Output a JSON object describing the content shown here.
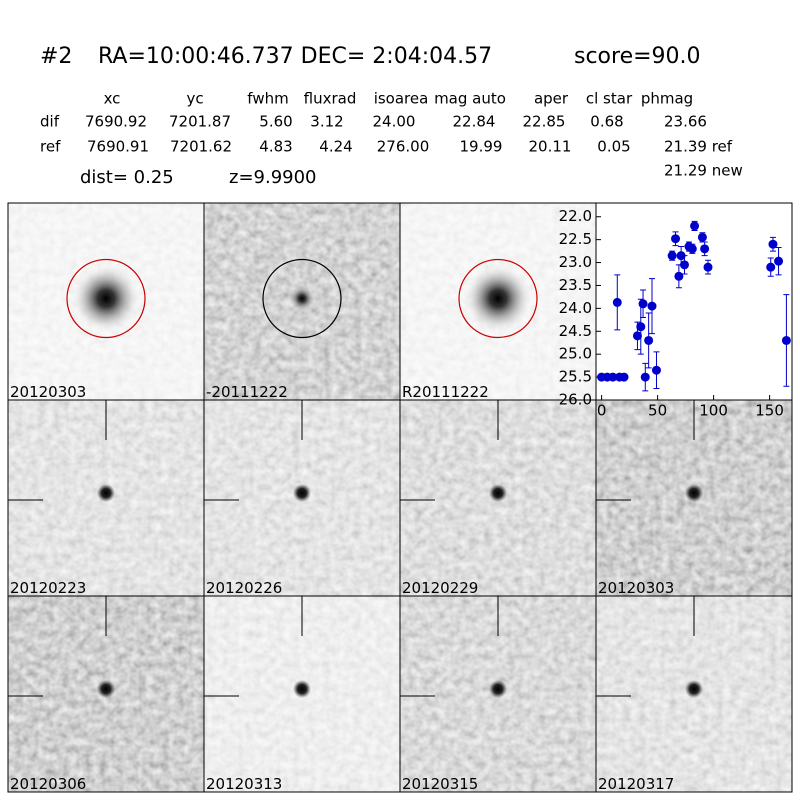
{
  "header": {
    "id": "#2",
    "coords": "RA=10:00:46.737 DEC= 2:04:04.57",
    "score": "score=90.0"
  },
  "table": {
    "columns": [
      "xc",
      "yc",
      "fwhm",
      "fluxrad",
      "isoarea",
      "mag auto",
      "aper",
      "cl star",
      "phmag"
    ],
    "rows": [
      [
        "dif",
        "7690.92",
        "7201.87",
        "5.60",
        "3.12",
        "24.00",
        "22.84",
        "22.85",
        "0.68",
        "23.66"
      ],
      [
        "ref",
        "7690.91",
        "7201.62",
        "4.83",
        "4.24",
        "276.00",
        "19.99",
        "20.11",
        "0.05",
        "21.39 ref"
      ]
    ],
    "extra": "21.29 new"
  },
  "dist": "dist=  0.25",
  "z": "z=9.9900",
  "stamps": [
    "20120303",
    "-20111222",
    "R20111222",
    "20120223",
    "20120226",
    "20120229",
    "20120303",
    "20120306",
    "20120313",
    "20120315",
    "20120317"
  ],
  "chart_data": {
    "type": "scatter",
    "color": "#0000cc",
    "x": [
      0,
      5,
      10,
      14,
      16,
      20,
      32,
      35,
      37,
      39,
      42,
      45,
      49,
      63,
      66,
      69,
      71,
      74,
      78,
      81,
      83,
      90,
      92,
      95,
      151,
      153,
      158,
      165
    ],
    "values": [
      25.5,
      25.5,
      25.5,
      23.87,
      25.5,
      25.5,
      24.6,
      24.4,
      23.9,
      25.5,
      24.7,
      23.95,
      25.35,
      22.85,
      22.48,
      23.3,
      22.85,
      23.05,
      22.65,
      22.7,
      22.2,
      22.45,
      22.7,
      23.1,
      23.1,
      22.6,
      22.97,
      24.7
    ],
    "errors": [
      0,
      0,
      0,
      0.6,
      0,
      0,
      0.3,
      0.6,
      0.3,
      0.3,
      0.6,
      0.6,
      0.4,
      0.1,
      0.15,
      0.25,
      0.2,
      0.2,
      0.1,
      0.1,
      0.1,
      0.1,
      0.15,
      0.15,
      0.2,
      0.15,
      0.3,
      1.0
    ],
    "xlim": [
      -5,
      170
    ],
    "ylim": [
      26.0,
      21.7
    ],
    "xticks": [
      0,
      50,
      100,
      150
    ],
    "yticks": [
      {
        "value": 22,
        "label": "22.0"
      },
      {
        "value": 22.5,
        "label": "22.5"
      },
      {
        "value": 23,
        "label": "23.0"
      },
      {
        "value": 23.5,
        "label": "23.5"
      },
      {
        "value": 24,
        "label": "24.0"
      },
      {
        "value": 24.5,
        "label": "24.5"
      },
      {
        "value": 25,
        "label": "25.0"
      },
      {
        "value": 25.5,
        "label": "25.5"
      },
      {
        "value": 26,
        "label": "26.0"
      }
    ]
  }
}
